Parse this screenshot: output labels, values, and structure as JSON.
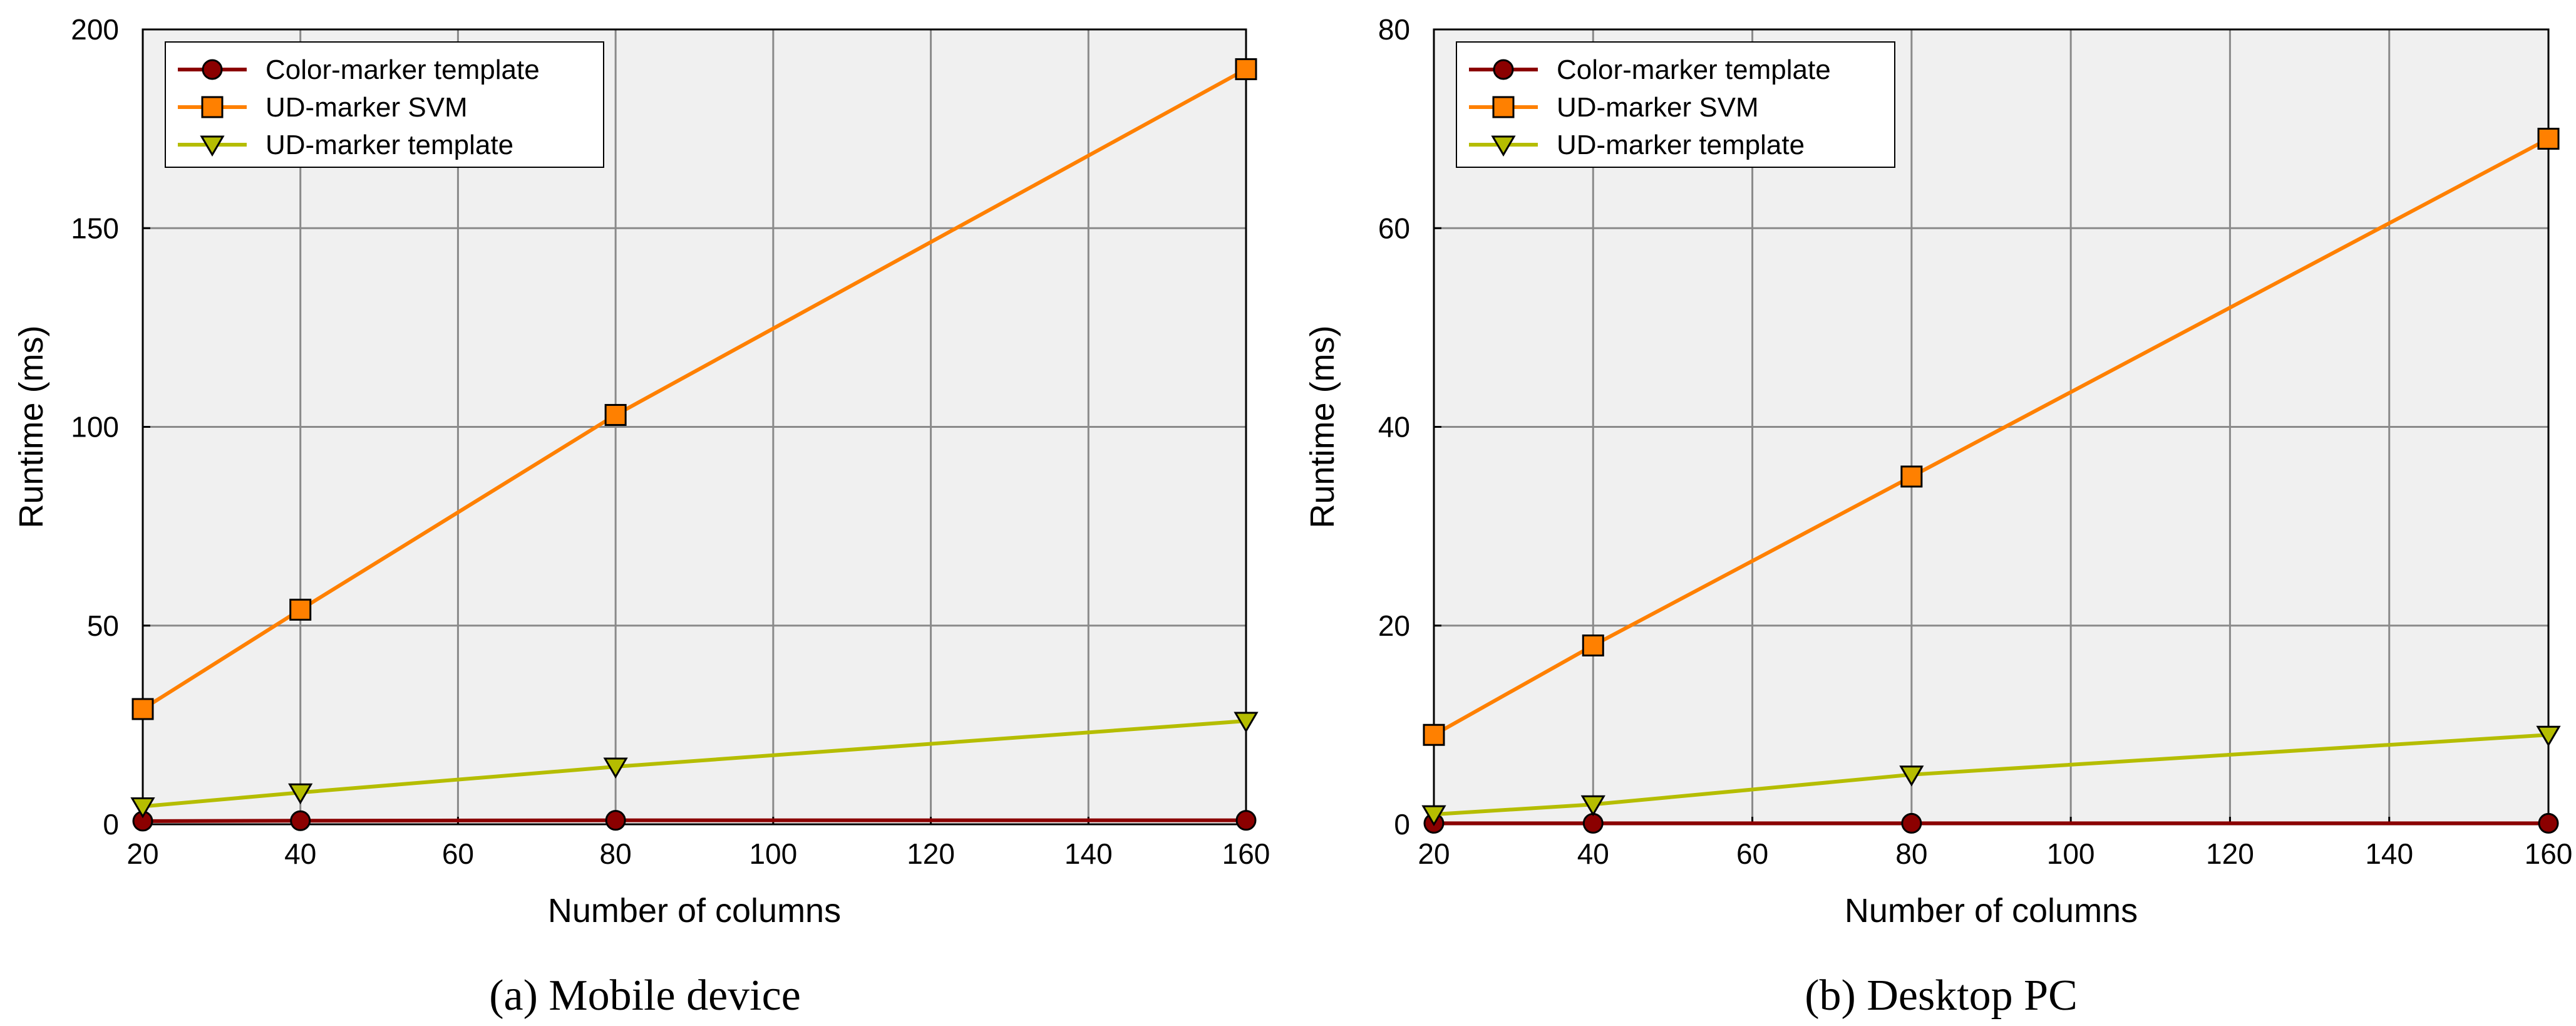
{
  "chart_data": [
    {
      "type": "line",
      "caption": "(a)  Mobile device",
      "xlabel": "Number of columns",
      "ylabel": "Runtime (ms)",
      "xlim": [
        20,
        160
      ],
      "ylim": [
        0,
        200
      ],
      "xticks": [
        20,
        40,
        60,
        80,
        100,
        120,
        140,
        160
      ],
      "yticks": [
        0,
        50,
        100,
        150,
        200
      ],
      "grid": true,
      "legend_position": "top-left",
      "x": [
        20,
        40,
        80,
        160
      ],
      "series": [
        {
          "name": "Color-marker template",
          "marker": "circle",
          "color": "#8b0000",
          "values": [
            0.8,
            0.9,
            1.0,
            1.0
          ]
        },
        {
          "name": "UD-marker SVM",
          "marker": "square",
          "color": "#ff8000",
          "values": [
            29,
            54,
            103,
            190
          ]
        },
        {
          "name": "UD-marker template",
          "marker": "triangle-down",
          "color": "#b5bd00",
          "values": [
            4.5,
            8,
            14.5,
            26
          ]
        }
      ]
    },
    {
      "type": "line",
      "caption": "(b)  Desktop PC",
      "xlabel": "Number of columns",
      "ylabel": "Runtime (ms)",
      "xlim": [
        20,
        160
      ],
      "ylim": [
        0,
        80
      ],
      "xticks": [
        20,
        40,
        60,
        80,
        100,
        120,
        140,
        160
      ],
      "yticks": [
        0,
        20,
        40,
        60,
        80
      ],
      "grid": true,
      "legend_position": "top-left",
      "x": [
        20,
        40,
        80,
        160
      ],
      "series": [
        {
          "name": "Color-marker template",
          "marker": "circle",
          "color": "#8b0000",
          "values": [
            0.1,
            0.1,
            0.1,
            0.1
          ]
        },
        {
          "name": "UD-marker SVM",
          "marker": "square",
          "color": "#ff8000",
          "values": [
            9,
            18,
            35,
            69
          ]
        },
        {
          "name": "UD-marker template",
          "marker": "triangle-down",
          "color": "#b5bd00",
          "values": [
            1,
            2,
            5,
            9
          ]
        }
      ]
    }
  ]
}
